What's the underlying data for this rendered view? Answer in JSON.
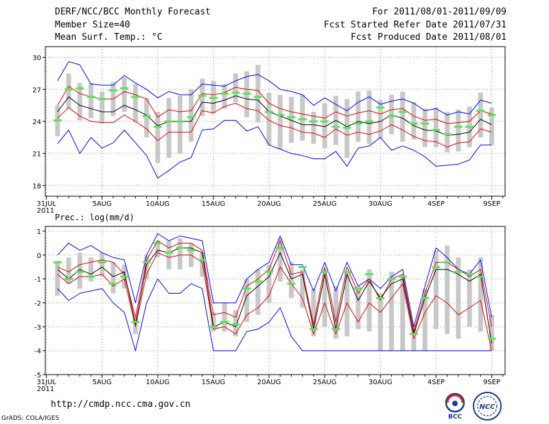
{
  "header": {
    "title": "DERF/NCC/BCC Monthly Forecast",
    "member": "Member Size=40",
    "variable": "Mean Surf. Temp.: °C",
    "period": "For 2011/08/01-2011/09/09",
    "refer_date": "Fcst Started Refer Date 2011/07/31",
    "produced_date": "Fcst Produced Date 2011/08/01"
  },
  "footer": {
    "url": "http://cmdp.ncc.cma.gov.cn",
    "credit": "GrADS: COLA/IGES",
    "logo_bcc": "BCC",
    "logo_ncc": "NCC"
  },
  "colors": {
    "max_min": "#0000ff",
    "percentile": "#e60000",
    "median": "#000000",
    "box": "#c8c8c8",
    "obs": "#55e655"
  },
  "chart_data": [
    {
      "type": "line",
      "title": "Mean Surf. Temp.: °C",
      "x_tick_labels": [
        "31JUL 2011",
        "5AUG",
        "10AUG",
        "15AUG",
        "20AUG",
        "25AUG",
        "30AUG",
        "4SEP",
        "9SEP"
      ],
      "x_tick_days": [
        0,
        5,
        10,
        15,
        20,
        25,
        30,
        35,
        40
      ],
      "ylim": [
        17,
        31
      ],
      "yticks": [
        18,
        21,
        24,
        27,
        30
      ],
      "x": [
        1,
        2,
        3,
        4,
        5,
        6,
        7,
        8,
        9,
        10,
        11,
        12,
        13,
        14,
        15,
        16,
        17,
        18,
        19,
        20,
        21,
        22,
        23,
        24,
        25,
        26,
        27,
        28,
        29,
        30,
        31,
        32,
        33,
        34,
        35,
        36,
        37,
        38,
        39,
        40
      ],
      "series": [
        {
          "name": "max",
          "values": [
            27.8,
            29.6,
            29.3,
            27.5,
            27.4,
            27.4,
            28.3,
            27.6,
            27.0,
            26.2,
            26.8,
            26.5,
            26.5,
            27.5,
            27.4,
            27.3,
            27.8,
            28.2,
            28.4,
            27.8,
            27.0,
            26.8,
            26.5,
            25.5,
            26.2,
            25.6,
            25.0,
            25.8,
            26.3,
            25.6,
            25.9,
            26.1,
            25.7,
            25.0,
            25.2,
            24.6,
            24.9,
            24.7,
            26.0,
            25.7
          ]
        },
        {
          "name": "p90",
          "values": [
            25.5,
            27.3,
            26.6,
            26.3,
            26.1,
            26.1,
            26.8,
            26.5,
            26.1,
            24.4,
            25.1,
            24.9,
            25.0,
            26.6,
            26.5,
            26.7,
            27.2,
            27.0,
            26.9,
            25.7,
            25.2,
            24.9,
            24.7,
            24.5,
            24.3,
            24.9,
            24.5,
            24.8,
            25.0,
            24.7,
            25.1,
            25.2,
            24.5,
            24.1,
            24.2,
            23.8,
            23.9,
            24.0,
            25.0,
            24.7
          ]
        },
        {
          "name": "median",
          "values": [
            24.9,
            26.3,
            25.5,
            25.2,
            24.9,
            24.9,
            25.5,
            25.1,
            24.6,
            23.6,
            24.0,
            24.0,
            24.0,
            25.8,
            25.7,
            26.0,
            26.4,
            26.1,
            26.0,
            24.9,
            24.5,
            24.1,
            23.7,
            23.7,
            23.5,
            24.1,
            23.5,
            24.0,
            23.8,
            24.0,
            24.6,
            24.3,
            23.6,
            23.2,
            23.1,
            22.7,
            22.8,
            23.0,
            24.2,
            23.7
          ]
        },
        {
          "name": "p10",
          "values": [
            24.3,
            25.3,
            24.5,
            24.0,
            23.9,
            23.9,
            24.6,
            24.0,
            23.3,
            22.2,
            23.0,
            23.0,
            23.0,
            25.0,
            24.8,
            25.4,
            25.7,
            25.2,
            25.0,
            24.1,
            23.6,
            23.4,
            23.0,
            22.9,
            22.5,
            23.3,
            22.7,
            23.0,
            22.8,
            23.1,
            23.7,
            23.2,
            22.6,
            22.2,
            22.1,
            21.6,
            22.0,
            22.1,
            23.3,
            23.0
          ]
        },
        {
          "name": "min",
          "values": [
            21.9,
            23.2,
            21.0,
            22.5,
            21.5,
            22.0,
            23.2,
            22.0,
            20.8,
            18.7,
            19.4,
            20.2,
            20.6,
            23.2,
            23.3,
            24.1,
            24.1,
            23.1,
            23.5,
            21.8,
            21.4,
            21.0,
            20.8,
            20.5,
            20.5,
            21.2,
            19.8,
            21.5,
            21.7,
            22.5,
            21.3,
            21.7,
            21.3,
            20.7,
            19.8,
            19.9,
            20.0,
            20.4,
            21.8,
            21.8
          ]
        },
        {
          "name": "box_high",
          "values": [
            25.5,
            28.5,
            27.6,
            27.6,
            26.8,
            27.7,
            28.1,
            27.5,
            26.2,
            24.9,
            26.2,
            26.4,
            27.0,
            28.0,
            27.8,
            27.5,
            28.5,
            28.7,
            29.3,
            26.7,
            26.5,
            26.3,
            26.5,
            24.9,
            25.7,
            26.4,
            26.1,
            26.8,
            26.9,
            26.0,
            26.5,
            26.8,
            25.8,
            25.2,
            25.3,
            24.9,
            25.1,
            25.4,
            26.7,
            25.3
          ]
        },
        {
          "name": "box_low",
          "values": [
            22.6,
            25.2,
            24.1,
            24.3,
            23.8,
            24.5,
            24.9,
            23.9,
            22.5,
            20.1,
            20.6,
            21.0,
            22.1,
            24.5,
            24.7,
            25.2,
            25.8,
            24.4,
            23.9,
            21.8,
            21.4,
            22.0,
            22.2,
            21.9,
            21.5,
            21.8,
            20.6,
            22.1,
            21.9,
            22.4,
            22.8,
            22.1,
            22.3,
            21.6,
            21.6,
            21.1,
            21.2,
            21.6,
            22.5,
            21.8
          ]
        },
        {
          "name": "observed",
          "values": [
            24.1,
            27.0,
            27.1,
            26.3,
            26.1,
            26.9,
            27.1,
            26.3,
            24.5,
            23.5,
            24.0,
            24.0,
            24.4,
            26.4,
            26.2,
            26.6,
            26.7,
            26.6,
            26.3,
            24.9,
            24.6,
            24.4,
            24.2,
            24.0,
            24.0,
            23.5,
            23.4,
            23.8,
            24.0,
            25.3,
            24.5,
            24.9,
            23.8,
            23.8,
            23.2,
            22.8,
            23.5,
            23.5,
            25.0,
            24.6
          ]
        }
      ]
    },
    {
      "type": "line",
      "title": "Prec.: log(mm/d)",
      "x_tick_labels": [
        "31JUL 2011",
        "5AUG",
        "10AUG",
        "15AUG",
        "20AUG",
        "25AUG",
        "30AUG",
        "4SEP",
        "9SEP"
      ],
      "x_tick_days": [
        0,
        5,
        10,
        15,
        20,
        25,
        30,
        35,
        40
      ],
      "ylim": [
        -5,
        1.2
      ],
      "yticks": [
        -5,
        -4,
        -3,
        -2,
        -1,
        0,
        1
      ],
      "x": [
        1,
        2,
        3,
        4,
        5,
        6,
        7,
        8,
        9,
        10,
        11,
        12,
        13,
        14,
        15,
        16,
        17,
        18,
        19,
        20,
        21,
        22,
        23,
        24,
        25,
        26,
        27,
        28,
        29,
        30,
        31,
        32,
        33,
        34,
        35,
        36,
        37,
        38,
        39,
        40
      ],
      "series": [
        {
          "name": "max",
          "values": [
            0.0,
            0.5,
            0.2,
            0.4,
            0.1,
            -0.1,
            -0.2,
            -2.0,
            0.0,
            0.9,
            0.6,
            0.8,
            0.7,
            0.6,
            -2.0,
            -2.0,
            -2.0,
            -1.0,
            -0.6,
            -0.3,
            0.8,
            -0.4,
            -0.4,
            -1.5,
            -0.3,
            -1.5,
            -0.3,
            -1.3,
            -1.0,
            -1.4,
            -0.9,
            -0.6,
            -3.0,
            -1.3,
            0.3,
            -0.1,
            -0.6,
            -0.8,
            -0.2,
            -2.6
          ]
        },
        {
          "name": "p90",
          "values": [
            -0.5,
            -0.7,
            -0.4,
            -0.3,
            -0.2,
            -0.3,
            -0.8,
            -2.6,
            -0.2,
            0.6,
            0.3,
            0.5,
            0.5,
            0.2,
            -2.5,
            -2.4,
            -2.6,
            -1.3,
            -1.0,
            -0.6,
            0.6,
            -0.8,
            -0.7,
            -2.9,
            -0.5,
            -2.8,
            -0.5,
            -1.6,
            -1.0,
            -1.9,
            -1.0,
            -0.8,
            -3.2,
            -1.6,
            -0.3,
            -0.3,
            -0.6,
            -0.9,
            -0.6,
            -3.0
          ]
        },
        {
          "name": "median",
          "values": [
            -0.6,
            -1.0,
            -0.6,
            -0.8,
            -0.5,
            -0.9,
            -0.7,
            -2.9,
            -0.4,
            0.2,
            0.1,
            0.3,
            0.3,
            0.1,
            -3.0,
            -2.8,
            -3.0,
            -1.7,
            -1.3,
            -0.9,
            0.1,
            -1.0,
            -0.8,
            -3.1,
            -0.8,
            -3.1,
            -0.8,
            -1.9,
            -1.1,
            -1.8,
            -1.2,
            -1.0,
            -3.3,
            -1.8,
            -0.6,
            -0.6,
            -0.8,
            -1.1,
            -0.8,
            -3.7
          ]
        },
        {
          "name": "p10",
          "values": [
            -0.8,
            -1.2,
            -0.9,
            -0.9,
            -0.8,
            -1.3,
            -1.0,
            -3.0,
            -0.8,
            0.1,
            -0.1,
            0.0,
            0.0,
            -0.3,
            -3.1,
            -3.0,
            -3.3,
            -2.5,
            -2.2,
            -1.7,
            -0.5,
            -1.2,
            -1.8,
            -3.3,
            -2.0,
            -3.3,
            -2.0,
            -2.8,
            -2.0,
            -2.4,
            -1.8,
            -1.2,
            -3.5,
            -2.4,
            -1.7,
            -2.0,
            -2.5,
            -2.2,
            -1.9,
            -4.0
          ]
        },
        {
          "name": "min",
          "values": [
            -1.4,
            -1.9,
            -1.6,
            -1.5,
            -1.4,
            -2.0,
            -2.4,
            -4.0,
            -2.0,
            -1.0,
            -1.6,
            -1.6,
            -1.2,
            -1.4,
            -4.0,
            -4.0,
            -4.0,
            -3.2,
            -3.1,
            -2.8,
            -2.2,
            -3.4,
            -4.0,
            -4.0,
            -4.0,
            -4.0,
            -4.0,
            -4.0,
            -4.0,
            -4.0,
            -4.0,
            -4.0,
            -4.0,
            -4.0,
            -4.0,
            -4.0,
            -4.0,
            -4.0,
            -4.0,
            -4.0
          ]
        },
        {
          "name": "box_high",
          "values": [
            -0.3,
            -0.1,
            0.1,
            -0.1,
            0.1,
            -0.3,
            -0.4,
            -2.6,
            0.0,
            0.6,
            0.6,
            0.7,
            0.5,
            0.1,
            -2.4,
            -2.0,
            -2.3,
            -1.0,
            -0.6,
            -0.4,
            0.7,
            -0.3,
            -0.6,
            -1.4,
            -0.6,
            -1.3,
            -0.7,
            -1.3,
            -0.6,
            -1.6,
            -0.7,
            -0.9,
            -2.9,
            -1.4,
            0.2,
            0.4,
            -0.1,
            -0.6,
            -0.1,
            -2.5
          ]
        },
        {
          "name": "box_low",
          "values": [
            -1.7,
            -1.2,
            -1.4,
            -1.1,
            -0.9,
            -1.6,
            -1.4,
            -3.3,
            -1.0,
            -0.1,
            -0.6,
            -0.6,
            -0.5,
            -0.9,
            -3.2,
            -3.2,
            -3.4,
            -2.8,
            -2.5,
            -2.0,
            -1.1,
            -1.8,
            -2.2,
            -3.4,
            -3.0,
            -3.5,
            -3.4,
            -3.1,
            -3.2,
            -4.0,
            -4.0,
            -4.0,
            -4.0,
            -4.0,
            -3.1,
            -3.3,
            -3.5,
            -3.0,
            -3.2,
            -4.0
          ]
        },
        {
          "name": "observed",
          "values": [
            -0.3,
            -1.0,
            -0.7,
            -0.9,
            -0.3,
            -1.2,
            -0.9,
            -2.8,
            -0.3,
            0.5,
            0.1,
            0.3,
            0.2,
            -0.2,
            -3.0,
            -2.8,
            -2.9,
            -1.4,
            -1.1,
            -0.7,
            0.3,
            -1.2,
            -0.5,
            -3.1,
            -0.7,
            -3.1,
            -0.7,
            -1.4,
            -0.8,
            -1.8,
            -1.0,
            -0.9,
            -3.3,
            -1.8,
            -0.5,
            -0.3,
            -0.7,
            -0.8,
            -0.9,
            -3.5
          ]
        }
      ]
    }
  ]
}
